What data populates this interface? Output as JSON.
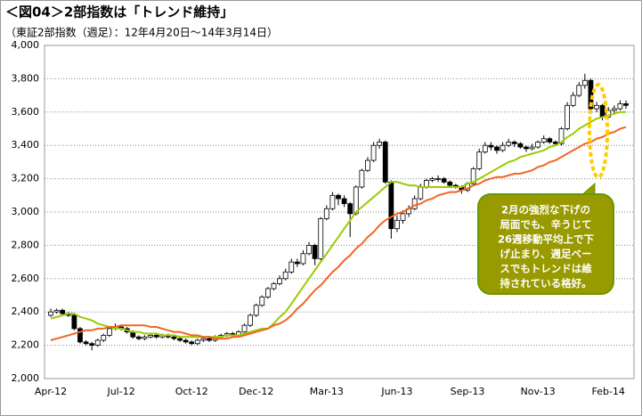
{
  "chart_data": {
    "type": "candlestick",
    "title": "＜図04＞2部指数は「トレンド維持」",
    "subtitle": "（東証2部指数（週足）：12年4月20日～14年3月14日）",
    "annotation": [
      "2月の強烈な下げの",
      "局面でも、辛うじて",
      "26週移動平均上で下",
      "げ止まり、週足ベー",
      "スでもトレンドは維",
      "持されている格好。"
    ],
    "categories": [
      "Apr-12",
      null,
      null,
      null,
      null,
      null,
      null,
      null,
      null,
      null,
      null,
      null,
      "Jul-12",
      null,
      null,
      null,
      null,
      null,
      null,
      null,
      null,
      null,
      null,
      null,
      "Oct-12",
      null,
      null,
      null,
      null,
      null,
      null,
      null,
      null,
      null,
      null,
      "Dec-12",
      null,
      null,
      null,
      null,
      null,
      null,
      null,
      null,
      null,
      null,
      null,
      "Mar-13",
      null,
      null,
      null,
      null,
      null,
      null,
      null,
      null,
      null,
      null,
      null,
      "Jun-13",
      null,
      null,
      null,
      null,
      null,
      null,
      null,
      null,
      null,
      null,
      null,
      "Sep-13",
      null,
      null,
      null,
      null,
      null,
      null,
      null,
      null,
      null,
      null,
      null,
      "Nov-13",
      null,
      null,
      null,
      null,
      null,
      null,
      null,
      null,
      null,
      null,
      null,
      "Feb-14",
      null,
      null,
      null
    ],
    "open": [
      2380,
      2400,
      2410,
      2390,
      2380,
      2300,
      2220,
      2210,
      2200,
      2230,
      2260,
      2300,
      2310,
      2300,
      2280,
      2250,
      2240,
      2250,
      2260,
      2250,
      2260,
      2250,
      2240,
      2230,
      2220,
      2210,
      2230,
      2240,
      2230,
      2250,
      2260,
      2270,
      2260,
      2280,
      2320,
      2380,
      2440,
      2490,
      2540,
      2570,
      2600,
      2640,
      2700,
      2690,
      2750,
      2800,
      2720,
      2960,
      3020,
      3100,
      3080,
      3050,
      2990,
      3150,
      3250,
      3310,
      3400,
      3420,
      3180,
      2900,
      2950,
      2990,
      3020,
      3080,
      3150,
      3190,
      3200,
      3200,
      3180,
      3160,
      3150,
      3130,
      3170,
      3260,
      3360,
      3400,
      3390,
      3370,
      3400,
      3420,
      3410,
      3390,
      3380,
      3390,
      3420,
      3440,
      3420,
      3410,
      3500,
      3640,
      3700,
      3760,
      3790,
      3620,
      3640,
      3570,
      3610,
      3620,
      3650
    ],
    "high": [
      2420,
      2420,
      2420,
      2400,
      2390,
      2310,
      2230,
      2220,
      2240,
      2270,
      2310,
      2330,
      2320,
      2310,
      2290,
      2260,
      2260,
      2270,
      2270,
      2270,
      2270,
      2260,
      2250,
      2240,
      2230,
      2240,
      2250,
      2250,
      2260,
      2270,
      2280,
      2280,
      2290,
      2330,
      2390,
      2450,
      2500,
      2550,
      2580,
      2620,
      2660,
      2720,
      2720,
      2770,
      2820,
      2810,
      2970,
      3040,
      3120,
      3110,
      3100,
      3060,
      3160,
      3260,
      3330,
      3420,
      3440,
      3430,
      3190,
      2980,
      3010,
      3040,
      3100,
      3170,
      3200,
      3210,
      3220,
      3210,
      3190,
      3170,
      3160,
      3180,
      3270,
      3380,
      3420,
      3420,
      3400,
      3420,
      3440,
      3430,
      3420,
      3400,
      3410,
      3430,
      3460,
      3450,
      3430,
      3510,
      3660,
      3720,
      3780,
      3830,
      3800,
      3660,
      3650,
      3630,
      3640,
      3670,
      3670
    ],
    "low": [
      2370,
      2390,
      2380,
      2370,
      2290,
      2210,
      2200,
      2170,
      2190,
      2220,
      2250,
      2290,
      2290,
      2270,
      2240,
      2230,
      2230,
      2240,
      2240,
      2240,
      2240,
      2230,
      2220,
      2210,
      2200,
      2200,
      2220,
      2220,
      2220,
      2240,
      2250,
      2250,
      2250,
      2270,
      2310,
      2370,
      2430,
      2480,
      2530,
      2560,
      2590,
      2630,
      2670,
      2680,
      2740,
      2680,
      2710,
      2950,
      3010,
      3040,
      3030,
      2850,
      2980,
      3140,
      3240,
      3300,
      3380,
      3170,
      2840,
      2880,
      2930,
      2970,
      3010,
      3070,
      3140,
      3180,
      3180,
      3170,
      3150,
      3140,
      3110,
      3120,
      3160,
      3250,
      3350,
      3370,
      3350,
      3360,
      3390,
      3390,
      3380,
      3360,
      3370,
      3380,
      3410,
      3410,
      3400,
      3400,
      3490,
      3630,
      3690,
      3740,
      3600,
      3600,
      3550,
      3560,
      3590,
      3610,
      3620
    ],
    "close": [
      2400,
      2410,
      2390,
      2380,
      2300,
      2220,
      2210,
      2200,
      2230,
      2260,
      2300,
      2310,
      2300,
      2280,
      2250,
      2240,
      2250,
      2260,
      2250,
      2260,
      2250,
      2240,
      2230,
      2220,
      2210,
      2230,
      2240,
      2230,
      2250,
      2260,
      2270,
      2260,
      2280,
      2320,
      2380,
      2440,
      2490,
      2540,
      2570,
      2600,
      2640,
      2700,
      2690,
      2750,
      2800,
      2720,
      2960,
      3020,
      3100,
      3080,
      3050,
      2990,
      3150,
      3250,
      3310,
      3400,
      3420,
      3180,
      2900,
      2950,
      2990,
      3020,
      3080,
      3150,
      3190,
      3200,
      3200,
      3180,
      3160,
      3150,
      3130,
      3170,
      3260,
      3360,
      3400,
      3390,
      3370,
      3400,
      3420,
      3410,
      3390,
      3380,
      3390,
      3420,
      3440,
      3420,
      3410,
      3500,
      3640,
      3700,
      3760,
      3790,
      3620,
      3640,
      3570,
      3610,
      3620,
      3650,
      3640
    ],
    "moving_averages": [
      {
        "color": "#99cc00",
        "values": [
          2360,
          2370,
          2380,
          2390,
          2390,
          2370,
          2360,
          2350,
          2330,
          2320,
          2310,
          2300,
          2300,
          2290,
          2280,
          2280,
          2270,
          2270,
          2270,
          2260,
          2260,
          2260,
          2250,
          2250,
          2250,
          2250,
          2250,
          2250,
          2250,
          2250,
          2260,
          2260,
          2260,
          2270,
          2280,
          2290,
          2300,
          2300,
          2330,
          2370,
          2400,
          2450,
          2500,
          2550,
          2600,
          2650,
          2700,
          2750,
          2800,
          2850,
          2900,
          2950,
          3000,
          3030,
          3060,
          3090,
          3120,
          3150,
          3180,
          3180,
          3170,
          3160,
          3160,
          3150,
          3150,
          3150,
          3150,
          3150,
          3150,
          3150,
          3150,
          3170,
          3180,
          3200,
          3220,
          3240,
          3260,
          3280,
          3300,
          3310,
          3330,
          3340,
          3350,
          3360,
          3370,
          3390,
          3400,
          3420,
          3450,
          3470,
          3500,
          3520,
          3540,
          3560,
          3570,
          3580,
          3590,
          3600,
          3600
        ]
      },
      {
        "color": "#f26522",
        "values": [
          2230,
          2240,
          2250,
          2260,
          2270,
          2280,
          2290,
          2290,
          2300,
          2300,
          2310,
          2310,
          2320,
          2320,
          2320,
          2320,
          2320,
          2310,
          2310,
          2300,
          2290,
          2280,
          2280,
          2270,
          2260,
          2260,
          2250,
          2250,
          2240,
          2240,
          2240,
          2250,
          2250,
          2260,
          2270,
          2280,
          2290,
          2300,
          2320,
          2330,
          2350,
          2380,
          2420,
          2450,
          2490,
          2530,
          2560,
          2600,
          2640,
          2670,
          2710,
          2740,
          2780,
          2810,
          2850,
          2880,
          2920,
          2950,
          2970,
          2990,
          3000,
          3020,
          3040,
          3050,
          3070,
          3080,
          3100,
          3110,
          3120,
          3120,
          3130,
          3140,
          3160,
          3170,
          3190,
          3200,
          3210,
          3210,
          3220,
          3230,
          3230,
          3240,
          3250,
          3270,
          3280,
          3300,
          3310,
          3330,
          3350,
          3370,
          3390,
          3410,
          3420,
          3440,
          3450,
          3470,
          3480,
          3500,
          3510
        ]
      }
    ],
    "ylim": [
      2000,
      4000
    ],
    "yticks": [
      {
        "value": 2000,
        "label": "2,000"
      },
      {
        "value": 2200,
        "label": "2,200"
      },
      {
        "value": 2400,
        "label": "2,400"
      },
      {
        "value": 2600,
        "label": "2,600"
      },
      {
        "value": 2800,
        "label": "2,800"
      },
      {
        "value": 3000,
        "label": "3,000"
      },
      {
        "value": 3200,
        "label": "3,200"
      },
      {
        "value": 3400,
        "label": "3,400"
      },
      {
        "value": 3600,
        "label": "3,600"
      },
      {
        "value": 3800,
        "label": "3,800"
      },
      {
        "value": 4000,
        "label": "4,000"
      }
    ],
    "grid": true
  }
}
